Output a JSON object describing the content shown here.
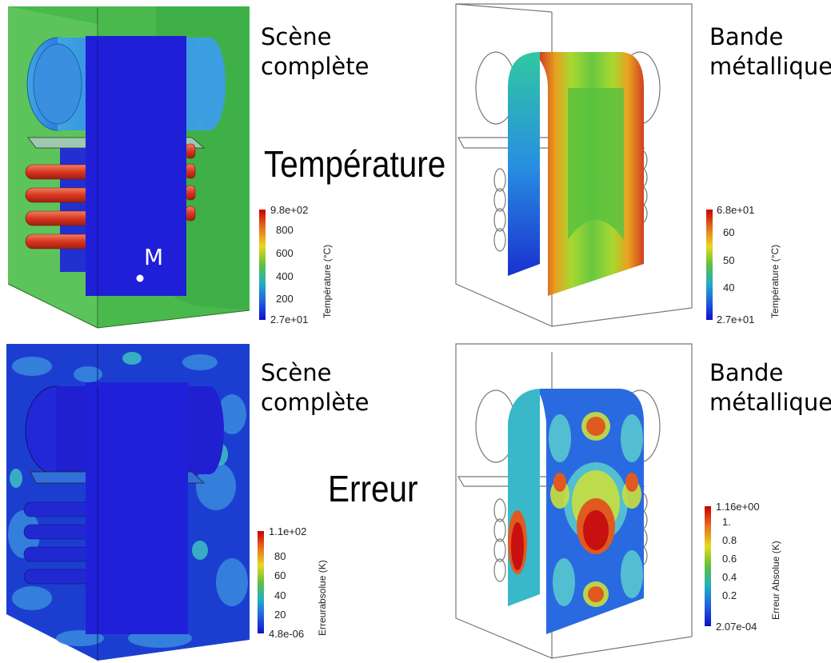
{
  "labels": {
    "scene_top": "Scène\ncomplète",
    "band_top": "Bande\nmétallique",
    "scene_bottom": "Scène\ncomplète",
    "band_bottom": "Bande\nmétallique",
    "temperature": "Température",
    "error": "Erreur",
    "point_m": "M"
  },
  "colorbars": [
    {
      "title": "Température (°C)",
      "ticks": [
        "9.8e+02",
        "800",
        "600",
        "400",
        "200",
        "2.7e+01"
      ]
    },
    {
      "title": "Température (°C)",
      "ticks": [
        "6.8e+01",
        "60",
        "50",
        "40",
        "2.7e+01"
      ]
    },
    {
      "title": "Erreurabsolue (K)",
      "ticks": [
        "1.1e+02",
        "80",
        "60",
        "40",
        "20",
        "4.8e-06"
      ]
    },
    {
      "title": "Erreur Absolue (K)",
      "ticks": [
        "1.16e+00",
        "1.",
        "0.8",
        "0.6",
        "0.4",
        "0.2",
        "2.07e-04"
      ]
    }
  ],
  "colors": {
    "blue": "#1f1fd8",
    "green": "#3fb84a",
    "red": "#d9291a",
    "cyan": "#39a9e0",
    "yellow": "#d8e020"
  }
}
